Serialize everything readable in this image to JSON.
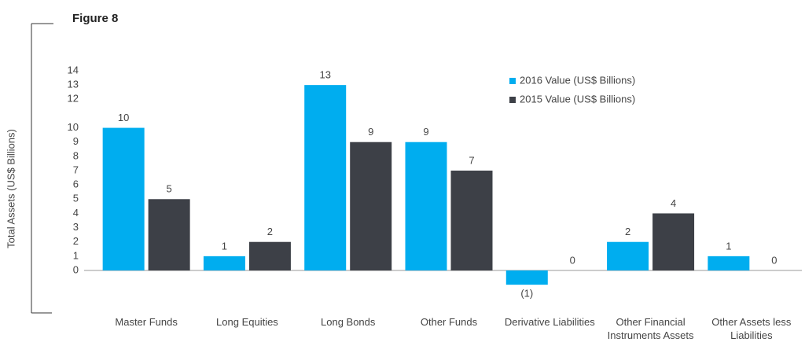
{
  "chart_data": {
    "type": "bar",
    "title": "Figure 8",
    "y_label": "Total Assets (US$ Billions)",
    "categories": [
      "Master Funds",
      "Long Equities",
      "Long Bonds",
      "Other Funds",
      "Derivative Liabilities",
      "Other Financial Instruments Assets",
      "Other Assets less Liabilities"
    ],
    "series": [
      {
        "name": "2016 Value (US$ Billions)",
        "color": "#00adef",
        "values": [
          10,
          1,
          13,
          9,
          -1,
          2,
          1
        ],
        "value_labels": [
          "10",
          "1",
          "13",
          "9",
          "(1)",
          "2",
          "1"
        ]
      },
      {
        "name": "2015 Value (US$ Billions)",
        "color": "#3d4047",
        "values": [
          5,
          2,
          9,
          7,
          0,
          4,
          0
        ]
      }
    ],
    "ylim": [
      -1.5,
      14
    ],
    "yticks": [
      0,
      1,
      2,
      3,
      4,
      5,
      6,
      7,
      8,
      9,
      10,
      12,
      13,
      14
    ],
    "legend": "upper right"
  }
}
